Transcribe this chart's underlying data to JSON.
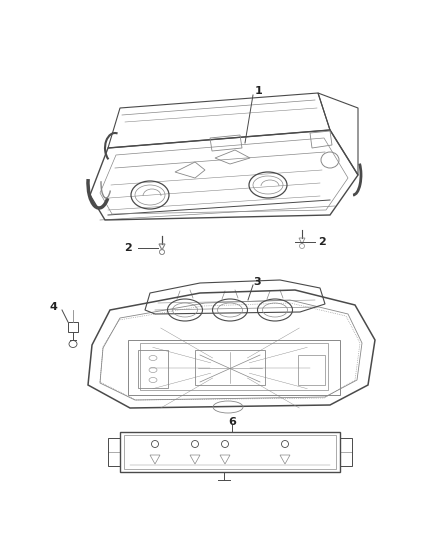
{
  "background_color": "#ffffff",
  "line_color": "#4a4a4a",
  "line_color2": "#888888",
  "text_color": "#222222",
  "fig_width": 4.38,
  "fig_height": 5.33,
  "dpi": 100
}
